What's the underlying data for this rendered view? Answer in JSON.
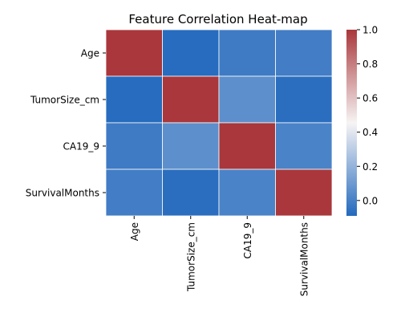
{
  "chart_data": {
    "type": "heatmap",
    "title": "Feature Correlation Heat-map",
    "xlabel": "",
    "ylabel": "",
    "x_categories": [
      "Age",
      "TumorSize_cm",
      "CA19_9",
      "SurvivalMonths"
    ],
    "y_categories": [
      "Age",
      "TumorSize_cm",
      "CA19_9",
      "SurvivalMonths"
    ],
    "matrix": [
      [
        1.0,
        -0.08,
        -0.02,
        -0.01
      ],
      [
        -0.08,
        1.0,
        0.06,
        -0.07
      ],
      [
        -0.02,
        0.06,
        1.0,
        0.01
      ],
      [
        -0.01,
        -0.07,
        0.01,
        1.0
      ]
    ],
    "colorbar": {
      "ticks": [
        "1.0",
        "0.8",
        "0.6",
        "0.4",
        "0.2",
        "0.0"
      ],
      "tick_values": [
        1.0,
        0.8,
        0.6,
        0.4,
        0.2,
        0.0
      ],
      "vmin": -0.09,
      "vmax": 1.0
    },
    "colormap": "vlag",
    "colors": {
      "low": "#2369bd",
      "mid": "#f7f4f4",
      "high": "#a9373b"
    },
    "grid": false,
    "legend": "colorbar-right"
  }
}
